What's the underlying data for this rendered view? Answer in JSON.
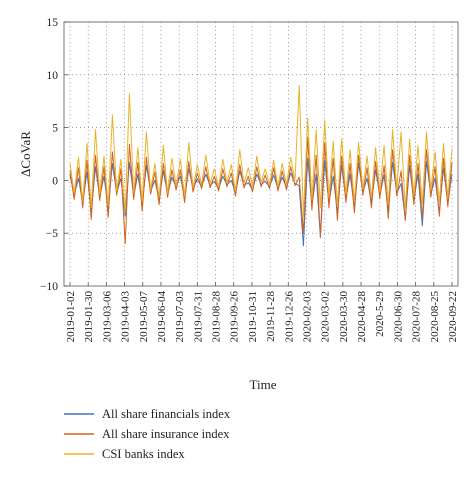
{
  "chart_data": {
    "type": "line",
    "title": "",
    "xlabel": "Time",
    "ylabel": "ΔCoVaR",
    "ylim": [
      -10,
      15
    ],
    "yticks": [
      -10,
      -5,
      0,
      5,
      10,
      15
    ],
    "x_tick_labels": [
      "2019-01-02",
      "2019-01-30",
      "2019-03-06",
      "2019-04-03",
      "2019-05-07",
      "2019-06-04",
      "2019-07-03",
      "2019-07-31",
      "2019-08-28",
      "2019-09-26",
      "2019-10-31",
      "2019-11-28",
      "2019-12-26",
      "2020-02-03",
      "2020-03-02",
      "2020-03-30",
      "2020-04-28",
      "2020-5-29",
      "2020-06-30",
      "2020-07-28",
      "2020-08-25",
      "2020-09-22"
    ],
    "grid": "dotted",
    "legend_position": "bottom",
    "sample_step": "weekly",
    "series": [
      {
        "name": "All share financials index",
        "color": "#4472c4",
        "values": [
          0.5,
          -1.4,
          0.2,
          -2.1,
          0.8,
          -3.0,
          1.3,
          -1.6,
          0.4,
          -2.7,
          1.6,
          -1.2,
          0.2,
          -3.4,
          1.7,
          -1.5,
          0.6,
          -2.3,
          1.4,
          -1.0,
          0.0,
          -1.8,
          0.9,
          -1.3,
          0.3,
          -0.6,
          0.4,
          -1.7,
          1.1,
          -0.8,
          0.1,
          -0.6,
          0.6,
          -0.5,
          -0.1,
          -0.8,
          0.4,
          -0.4,
          0.0,
          -1.2,
          0.9,
          -0.5,
          -0.2,
          -0.9,
          0.6,
          -0.4,
          -0.1,
          -0.6,
          0.5,
          -0.8,
          0.3,
          -0.7,
          0.7,
          -0.3,
          -0.5,
          -6.2,
          2.1,
          -2.4,
          0.6,
          -5.4,
          1.9,
          -2.2,
          0.4,
          -3.1,
          1.4,
          -1.8,
          0.6,
          -2.6,
          1.6,
          -1.1,
          0.2,
          -2.1,
          1.0,
          -1.4,
          0.5,
          -2.9,
          1.7,
          -1.2,
          -0.3,
          -3.7,
          1.4,
          -2.0,
          0.6,
          -4.3,
          1.8,
          -1.3,
          0.2,
          -3.0,
          1.2,
          -2.2,
          0.6
        ]
      },
      {
        "name": "All share insurance index",
        "color": "#d4611b",
        "values": [
          0.9,
          -1.8,
          1.2,
          -2.6,
          1.9,
          -3.7,
          2.4,
          -1.9,
          1.3,
          -3.5,
          2.7,
          -1.4,
          1.1,
          -6.0,
          3.4,
          -1.8,
          1.7,
          -2.9,
          2.2,
          -1.3,
          0.8,
          -2.3,
          1.6,
          -1.6,
          1.0,
          -0.9,
          1.0,
          -2.1,
          1.8,
          -1.1,
          0.7,
          -0.8,
          1.3,
          -0.7,
          0.4,
          -1.0,
          1.1,
          -0.6,
          0.7,
          -1.5,
          1.5,
          -0.7,
          0.4,
          -1.1,
          1.3,
          -0.6,
          0.5,
          -0.8,
          1.2,
          -1.0,
          0.9,
          -0.9,
          1.3,
          -0.5,
          0.3,
          -5.0,
          4.1,
          -2.8,
          2.4,
          -5.3,
          3.6,
          -2.6,
          2.1,
          -3.8,
          2.3,
          -2.1,
          1.6,
          -3.1,
          2.4,
          -1.4,
          1.2,
          -2.6,
          1.8,
          -1.7,
          1.4,
          -3.6,
          2.9,
          -1.5,
          0.9,
          -3.8,
          2.4,
          -2.3,
          1.6,
          -3.6,
          2.9,
          -1.6,
          1.3,
          -3.4,
          2.1,
          -2.5,
          1.7
        ]
      },
      {
        "name": "CSI banks index",
        "color": "#e8b32b",
        "values": [
          1.6,
          -1.2,
          2.2,
          -2.0,
          3.5,
          -2.6,
          4.8,
          -1.3,
          2.3,
          -2.4,
          6.2,
          -1.0,
          2.0,
          -3.0,
          8.2,
          -1.2,
          3.1,
          -2.0,
          4.6,
          -0.9,
          1.6,
          -1.6,
          3.3,
          -1.2,
          2.1,
          -0.5,
          2.0,
          -1.5,
          3.6,
          -0.7,
          1.5,
          -0.4,
          2.4,
          -0.3,
          1.1,
          -0.6,
          2.0,
          -0.2,
          1.5,
          -1.0,
          2.9,
          -0.3,
          1.2,
          -0.6,
          2.3,
          -0.2,
          1.1,
          -0.4,
          1.9,
          -0.6,
          1.6,
          -0.4,
          2.2,
          0.0,
          9.0,
          -3.4,
          5.9,
          -1.8,
          4.8,
          -2.6,
          5.7,
          -1.6,
          3.7,
          -2.4,
          3.9,
          -1.3,
          2.9,
          -2.0,
          3.6,
          -0.8,
          2.3,
          -1.6,
          3.1,
          -1.0,
          3.3,
          -2.3,
          4.8,
          -0.9,
          4.6,
          -2.6,
          3.9,
          -1.4,
          3.3,
          -2.2,
          4.6,
          -0.9,
          2.7,
          -2.1,
          3.5,
          -1.6,
          3.0
        ]
      }
    ]
  }
}
